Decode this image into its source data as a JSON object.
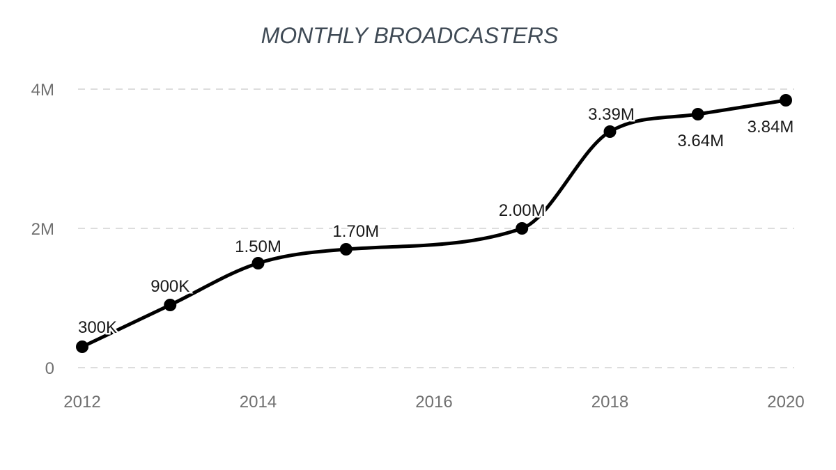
{
  "chart_data": {
    "type": "line",
    "title": "MONTHLY BROADCASTERS",
    "xlabel": "",
    "ylabel": "",
    "x": [
      2012,
      2013,
      2014,
      2015,
      2017,
      2018,
      2019,
      2020
    ],
    "series": [
      {
        "values": [
          300000,
          900000,
          1500000,
          1700000,
          2000000,
          3390000,
          3640000,
          3840000
        ]
      }
    ],
    "data_labels": [
      "300K",
      "900K",
      "1.50M",
      "1.70M",
      "2.00M",
      "3.39M",
      "3.64M",
      "3.84M"
    ],
    "x_ticks": [
      2012,
      2014,
      2016,
      2018,
      2020
    ],
    "x_tick_labels": [
      "2012",
      "2014",
      "2016",
      "2018",
      "2020"
    ],
    "y_ticks": [
      0,
      2000000,
      4000000
    ],
    "y_tick_labels": [
      "0",
      "2M",
      "4M"
    ],
    "xlim": [
      2012,
      2020
    ],
    "ylim": [
      0,
      4000000
    ],
    "grid": true,
    "legend": "none",
    "line_color": "#000000",
    "marker_color": "#000000"
  }
}
